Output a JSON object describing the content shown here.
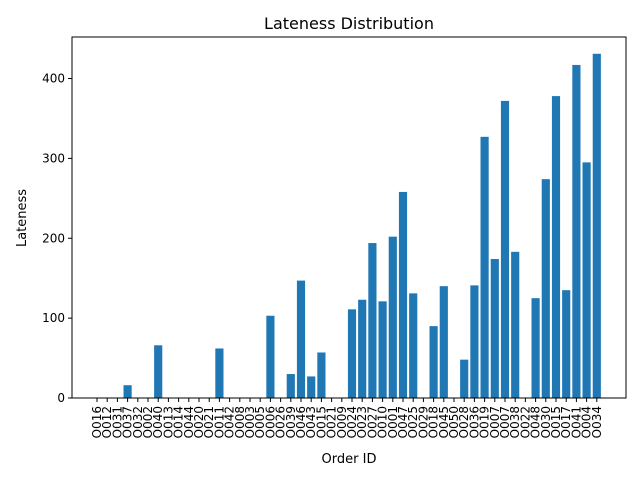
{
  "chart_data": {
    "type": "bar",
    "title": "Lateness Distribution",
    "xlabel": "Order ID",
    "ylabel": "Lateness",
    "ylim": [
      0,
      452
    ],
    "yticks": [
      0,
      100,
      200,
      300,
      400
    ],
    "bar_color": "#1f77b4",
    "grid": false,
    "categories": [
      "O016",
      "O012",
      "O031",
      "O037",
      "O032",
      "O002",
      "O040",
      "O013",
      "O014",
      "O044",
      "O020",
      "O021",
      "O011",
      "O042",
      "O008",
      "O003",
      "O005",
      "O006",
      "O026",
      "O039",
      "O046",
      "O043",
      "O015",
      "O021",
      "O009",
      "O024",
      "O023",
      "O027",
      "O010",
      "O001",
      "O047",
      "O025",
      "O029",
      "O018",
      "O045",
      "O050",
      "O028",
      "O036",
      "O019",
      "O007",
      "O007",
      "O038",
      "O022",
      "O048",
      "O030",
      "O015",
      "O017",
      "O041",
      "O004",
      "O034"
    ],
    "values": [
      0,
      0,
      0,
      16,
      0,
      0,
      66,
      0,
      0,
      0,
      0,
      0,
      62,
      0,
      0,
      0,
      0,
      103,
      0,
      30,
      147,
      27,
      57,
      0,
      0,
      111,
      123,
      194,
      121,
      202,
      258,
      131,
      0,
      90,
      140,
      0,
      48,
      141,
      327,
      174,
      372,
      183,
      0,
      125,
      274,
      378,
      135,
      417,
      295,
      431
    ]
  }
}
